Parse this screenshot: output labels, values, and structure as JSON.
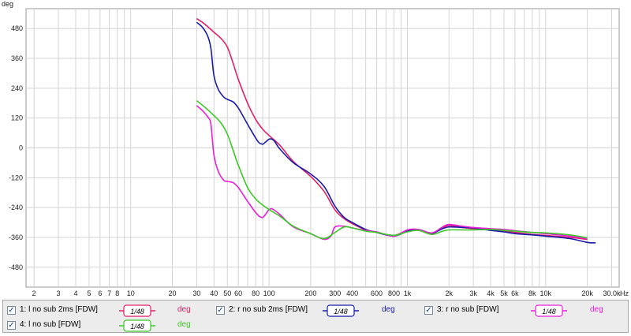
{
  "chart_data": {
    "type": "line",
    "ylabel": "deg",
    "xlabel": "Hz",
    "x_scale": "log",
    "xlim": [
      1.75,
      34000
    ],
    "ylim": [
      -560,
      560
    ],
    "y_ticks": [
      480,
      360,
      240,
      120,
      0,
      -120,
      -240,
      -360,
      -480
    ],
    "x_ticks": [
      {
        "value": 2,
        "label": "2"
      },
      {
        "value": 3,
        "label": "3"
      },
      {
        "value": 4,
        "label": "4"
      },
      {
        "value": 5,
        "label": "5"
      },
      {
        "value": 6,
        "label": "6"
      },
      {
        "value": 7,
        "label": "7"
      },
      {
        "value": 8,
        "label": "8"
      },
      {
        "value": 10,
        "label": "10"
      },
      {
        "value": 20,
        "label": "20"
      },
      {
        "value": 30,
        "label": "30"
      },
      {
        "value": 40,
        "label": "40"
      },
      {
        "value": 50,
        "label": "50"
      },
      {
        "value": 60,
        "label": "60"
      },
      {
        "value": 80,
        "label": "80"
      },
      {
        "value": 100,
        "label": "100"
      },
      {
        "value": 200,
        "label": "200"
      },
      {
        "value": 300,
        "label": "300"
      },
      {
        "value": 400,
        "label": "400"
      },
      {
        "value": 600,
        "label": "600"
      },
      {
        "value": 800,
        "label": "800"
      },
      {
        "value": 1000,
        "label": "1k"
      },
      {
        "value": 2000,
        "label": "2k"
      },
      {
        "value": 3000,
        "label": "3k"
      },
      {
        "value": 4000,
        "label": "4k"
      },
      {
        "value": 5000,
        "label": "5k"
      },
      {
        "value": 6000,
        "label": "6k"
      },
      {
        "value": 8000,
        "label": "8k"
      },
      {
        "value": 10000,
        "label": "10k"
      },
      {
        "value": 20000,
        "label": "20k"
      },
      {
        "value": 30000,
        "label": "30.0k"
      }
    ],
    "grid": true,
    "series": [
      {
        "name": "1: l no sub 2ms [FDW]",
        "color": "#e0206a",
        "points": [
          [
            30,
            520
          ],
          [
            33,
            505
          ],
          [
            36,
            488
          ],
          [
            40,
            465
          ],
          [
            45,
            440
          ],
          [
            50,
            405
          ],
          [
            55,
            340
          ],
          [
            60,
            275
          ],
          [
            70,
            180
          ],
          [
            80,
            115
          ],
          [
            90,
            75
          ],
          [
            100,
            50
          ],
          [
            120,
            10
          ],
          [
            150,
            -55
          ],
          [
            200,
            -115
          ],
          [
            250,
            -175
          ],
          [
            300,
            -250
          ],
          [
            350,
            -285
          ],
          [
            400,
            -305
          ],
          [
            500,
            -330
          ],
          [
            600,
            -340
          ],
          [
            800,
            -352
          ],
          [
            1000,
            -332
          ],
          [
            1200,
            -330
          ],
          [
            1500,
            -345
          ],
          [
            1800,
            -322
          ],
          [
            2000,
            -312
          ],
          [
            2500,
            -320
          ],
          [
            3000,
            -325
          ],
          [
            4000,
            -330
          ],
          [
            5000,
            -335
          ],
          [
            6000,
            -340
          ],
          [
            8000,
            -348
          ],
          [
            10000,
            -352
          ],
          [
            15000,
            -360
          ],
          [
            20000,
            -368
          ]
        ]
      },
      {
        "name": "2: r no sub 2ms [FDW]",
        "color": "#1a1aa8",
        "points": [
          [
            30,
            505
          ],
          [
            33,
            485
          ],
          [
            36,
            450
          ],
          [
            38,
            400
          ],
          [
            40,
            290
          ],
          [
            43,
            235
          ],
          [
            47,
            205
          ],
          [
            50,
            195
          ],
          [
            55,
            185
          ],
          [
            60,
            160
          ],
          [
            70,
            95
          ],
          [
            80,
            40
          ],
          [
            85,
            20
          ],
          [
            90,
            15
          ],
          [
            95,
            25
          ],
          [
            100,
            35
          ],
          [
            105,
            35
          ],
          [
            110,
            25
          ],
          [
            120,
            -5
          ],
          [
            150,
            -60
          ],
          [
            200,
            -105
          ],
          [
            250,
            -155
          ],
          [
            300,
            -235
          ],
          [
            350,
            -280
          ],
          [
            400,
            -300
          ],
          [
            500,
            -328
          ],
          [
            600,
            -340
          ],
          [
            800,
            -355
          ],
          [
            1000,
            -335
          ],
          [
            1200,
            -328
          ],
          [
            1500,
            -343
          ],
          [
            1800,
            -325
          ],
          [
            2000,
            -318
          ],
          [
            2500,
            -320
          ],
          [
            3000,
            -322
          ],
          [
            4000,
            -332
          ],
          [
            5000,
            -338
          ],
          [
            6000,
            -345
          ],
          [
            8000,
            -350
          ],
          [
            10000,
            -355
          ],
          [
            15000,
            -365
          ],
          [
            20000,
            -380
          ],
          [
            23000,
            -382
          ]
        ]
      },
      {
        "name": "3: r no sub [FDW]",
        "color": "#e81ed8",
        "points": [
          [
            30,
            170
          ],
          [
            33,
            150
          ],
          [
            36,
            125
          ],
          [
            38,
            95
          ],
          [
            40,
            -30
          ],
          [
            43,
            -95
          ],
          [
            47,
            -130
          ],
          [
            50,
            -135
          ],
          [
            55,
            -140
          ],
          [
            60,
            -160
          ],
          [
            70,
            -215
          ],
          [
            80,
            -260
          ],
          [
            85,
            -275
          ],
          [
            90,
            -280
          ],
          [
            95,
            -265
          ],
          [
            100,
            -248
          ],
          [
            105,
            -245
          ],
          [
            110,
            -252
          ],
          [
            120,
            -268
          ],
          [
            150,
            -318
          ],
          [
            200,
            -345
          ],
          [
            250,
            -368
          ],
          [
            280,
            -355
          ],
          [
            300,
            -318
          ],
          [
            350,
            -315
          ],
          [
            400,
            -322
          ],
          [
            500,
            -332
          ],
          [
            600,
            -338
          ],
          [
            800,
            -355
          ],
          [
            1000,
            -330
          ],
          [
            1200,
            -328
          ],
          [
            1500,
            -342
          ],
          [
            1800,
            -318
          ],
          [
            2000,
            -308
          ],
          [
            2500,
            -315
          ],
          [
            3000,
            -320
          ],
          [
            4000,
            -325
          ],
          [
            5000,
            -328
          ],
          [
            6000,
            -333
          ],
          [
            8000,
            -340
          ],
          [
            10000,
            -345
          ],
          [
            15000,
            -355
          ],
          [
            20000,
            -365
          ]
        ]
      },
      {
        "name": "4: l no sub [FDW]",
        "color": "#3cc828",
        "points": [
          [
            30,
            190
          ],
          [
            35,
            160
          ],
          [
            40,
            130
          ],
          [
            45,
            100
          ],
          [
            50,
            55
          ],
          [
            55,
            -10
          ],
          [
            60,
            -70
          ],
          [
            70,
            -160
          ],
          [
            80,
            -205
          ],
          [
            90,
            -230
          ],
          [
            100,
            -248
          ],
          [
            120,
            -275
          ],
          [
            150,
            -315
          ],
          [
            200,
            -345
          ],
          [
            250,
            -365
          ],
          [
            300,
            -340
          ],
          [
            350,
            -318
          ],
          [
            400,
            -322
          ],
          [
            500,
            -335
          ],
          [
            600,
            -340
          ],
          [
            800,
            -352
          ],
          [
            1000,
            -338
          ],
          [
            1200,
            -332
          ],
          [
            1500,
            -348
          ],
          [
            1800,
            -335
          ],
          [
            2000,
            -330
          ],
          [
            2500,
            -330
          ],
          [
            3000,
            -330
          ],
          [
            4000,
            -328
          ],
          [
            5000,
            -332
          ],
          [
            6000,
            -335
          ],
          [
            8000,
            -340
          ],
          [
            10000,
            -342
          ],
          [
            15000,
            -350
          ],
          [
            20000,
            -362
          ]
        ]
      }
    ]
  },
  "legend": [
    {
      "label": "1: l no sub 2ms [FDW]",
      "color": "#e0206a",
      "smoothing": "1/48",
      "unit": "deg",
      "checked": true
    },
    {
      "label": "2: r no sub 2ms [FDW]",
      "color": "#1a1aa8",
      "smoothing": "1/48",
      "unit": "deg",
      "checked": true
    },
    {
      "label": "3: r no sub [FDW]",
      "color": "#e81ed8",
      "smoothing": "1/48",
      "unit": "deg",
      "checked": true
    },
    {
      "label": "4: l no sub [FDW]",
      "color": "#3cc828",
      "smoothing": "1/48",
      "unit": "deg",
      "checked": true
    }
  ],
  "colors": {
    "grid": "#d4d4d4",
    "axis": "#9a9a9a",
    "plot_background": "#ffffff",
    "legend_background": "#ececec"
  }
}
